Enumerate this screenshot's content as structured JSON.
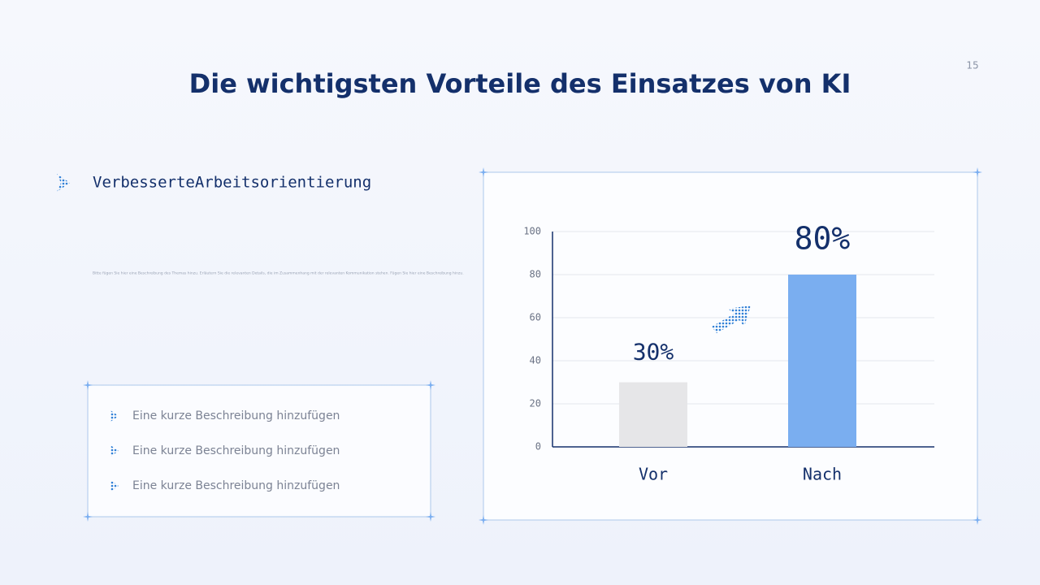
{
  "page_number": "15",
  "title": "Die wichtigsten Vorteile des Einsatzes von KI",
  "section_heading": "VerbesserteArbeitsorientierung",
  "paragraph": "Bitte fügen Sie hier eine Beschreibung des Themas hinzu. Erläutern Sie die relevanten Details, die im Zusammenhang mit der relevanten Kommunikation stehen. Fügen Sie hier eine Beschreibung hinzu.",
  "bullets": [
    "Eine kurze Beschreibung hinzufügen",
    "Eine kurze Beschreibung hinzufügen",
    "Eine kurze Beschreibung hinzufügen"
  ],
  "chart_data": {
    "type": "bar",
    "categories": [
      "Vor",
      "Nach"
    ],
    "values": [
      30,
      80
    ],
    "value_labels": [
      "30%",
      "80%"
    ],
    "colors": [
      "#e6e6e8",
      "#7aaef0"
    ],
    "ylim": [
      0,
      100
    ],
    "yticks": [
      0,
      20,
      40,
      60,
      80,
      100
    ],
    "grid": true
  }
}
